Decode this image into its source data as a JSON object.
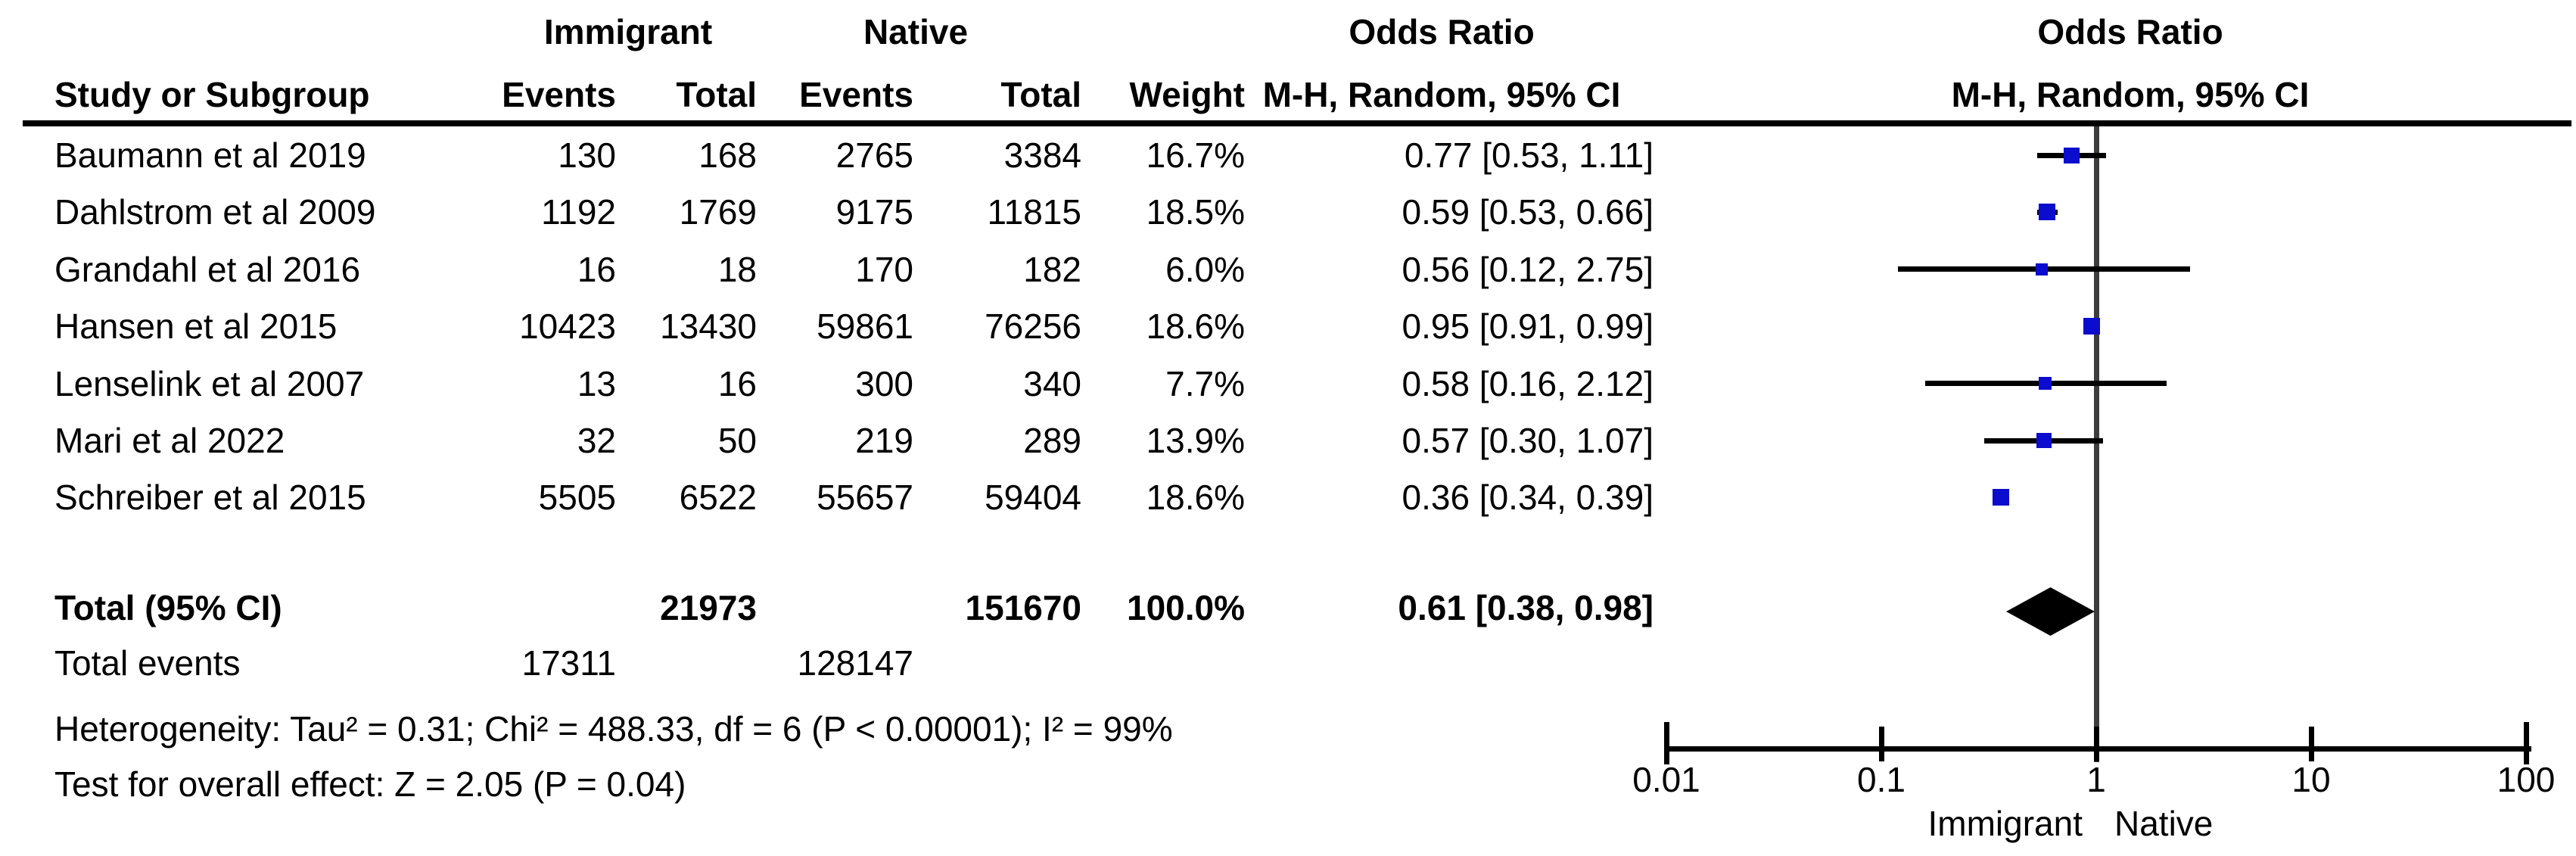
{
  "header": {
    "group_immigrant": "Immigrant",
    "group_native": "Native",
    "or_text_col": {
      "title": "Odds Ratio",
      "subtitle": "M-H, Random, 95% CI"
    },
    "or_plot_col": {
      "title": "Odds Ratio",
      "subtitle": "M-H, Random, 95% CI"
    },
    "cols": {
      "study": "Study or Subgroup",
      "events_immigrant": "Events",
      "total_immigrant": "Total",
      "events_native": "Events",
      "total_native": "Total",
      "weight": "Weight"
    }
  },
  "studies": [
    {
      "name": "Baumann et al 2019",
      "events_immigrant": "130",
      "total_immigrant": "168",
      "events_native": "2765",
      "total_native": "3384",
      "weight": "16.7%",
      "or_text": "0.77 [0.53, 1.11]"
    },
    {
      "name": "Dahlstrom et al 2009",
      "events_immigrant": "1192",
      "total_immigrant": "1769",
      "events_native": "9175",
      "total_native": "11815",
      "weight": "18.5%",
      "or_text": "0.59 [0.53, 0.66]"
    },
    {
      "name": "Grandahl et al 2016",
      "events_immigrant": "16",
      "total_immigrant": "18",
      "events_native": "170",
      "total_native": "182",
      "weight": "6.0%",
      "or_text": "0.56 [0.12, 2.75]"
    },
    {
      "name": "Hansen et al 2015",
      "events_immigrant": "10423",
      "total_immigrant": "13430",
      "events_native": "59861",
      "total_native": "76256",
      "weight": "18.6%",
      "or_text": "0.95 [0.91, 0.99]"
    },
    {
      "name": "Lenselink et al 2007",
      "events_immigrant": "13",
      "total_immigrant": "16",
      "events_native": "300",
      "total_native": "340",
      "weight": "7.7%",
      "or_text": "0.58 [0.16, 2.12]"
    },
    {
      "name": "Mari et al 2022",
      "events_immigrant": "32",
      "total_immigrant": "50",
      "events_native": "219",
      "total_native": "289",
      "weight": "13.9%",
      "or_text": "0.57 [0.30, 1.07]"
    },
    {
      "name": "Schreiber et al 2015",
      "events_immigrant": "5505",
      "total_immigrant": "6522",
      "events_native": "55657",
      "total_native": "59404",
      "weight": "18.6%",
      "or_text": "0.36 [0.34, 0.39]"
    }
  ],
  "total_row": {
    "label": "Total (95% CI)",
    "total_immigrant": "21973",
    "total_native": "151670",
    "weight": "100.0%",
    "or_text": "0.61 [0.38, 0.98]"
  },
  "total_events_row": {
    "label": "Total events",
    "events_immigrant": "17311",
    "events_native": "128147"
  },
  "footnotes": {
    "heterogeneity": "Heterogeneity: Tau² = 0.31; Chi² = 488.33, df = 6 (P < 0.00001); I² = 99%",
    "overall_effect": "Test for overall effect: Z = 2.05 (P = 0.04)"
  },
  "axis": {
    "tick_labels": [
      "0.01",
      "0.1",
      "1",
      "10",
      "100"
    ],
    "favours_left": "Immigrant",
    "favours_right": "Native"
  },
  "colors": {
    "square_blue": "#0c0cce",
    "diamond_black": "#000000",
    "ci_line": "#000000",
    "null_line_gray": "#3d3d3d"
  },
  "chart_data": {
    "type": "scatter",
    "subtype": "forest-plot-odds-ratio",
    "title": "Odds Ratio, M-H, Random, 95% CI",
    "x_scale": "log",
    "x_range": [
      0.01,
      100
    ],
    "x_ticks": [
      0.01,
      0.1,
      1,
      10,
      100
    ],
    "null_line": 1,
    "favours_left": "Immigrant",
    "favours_right": "Native",
    "series": [
      {
        "name": "Baumann et al 2019",
        "or": 0.77,
        "ci_low": 0.53,
        "ci_high": 1.11,
        "weight_pct": 16.7
      },
      {
        "name": "Dahlstrom et al 2009",
        "or": 0.59,
        "ci_low": 0.53,
        "ci_high": 0.66,
        "weight_pct": 18.5
      },
      {
        "name": "Grandahl et al 2016",
        "or": 0.56,
        "ci_low": 0.12,
        "ci_high": 2.75,
        "weight_pct": 6.0
      },
      {
        "name": "Hansen et al 2015",
        "or": 0.95,
        "ci_low": 0.91,
        "ci_high": 0.99,
        "weight_pct": 18.6
      },
      {
        "name": "Lenselink et al 2007",
        "or": 0.58,
        "ci_low": 0.16,
        "ci_high": 2.12,
        "weight_pct": 7.7
      },
      {
        "name": "Mari et al 2022",
        "or": 0.57,
        "ci_low": 0.3,
        "ci_high": 1.07,
        "weight_pct": 13.9
      },
      {
        "name": "Schreiber et al 2015",
        "or": 0.36,
        "ci_low": 0.34,
        "ci_high": 0.39,
        "weight_pct": 18.6
      }
    ],
    "overall": {
      "name": "Total (95% CI)",
      "or": 0.61,
      "ci_low": 0.38,
      "ci_high": 0.98,
      "weight_pct": 100.0
    }
  }
}
